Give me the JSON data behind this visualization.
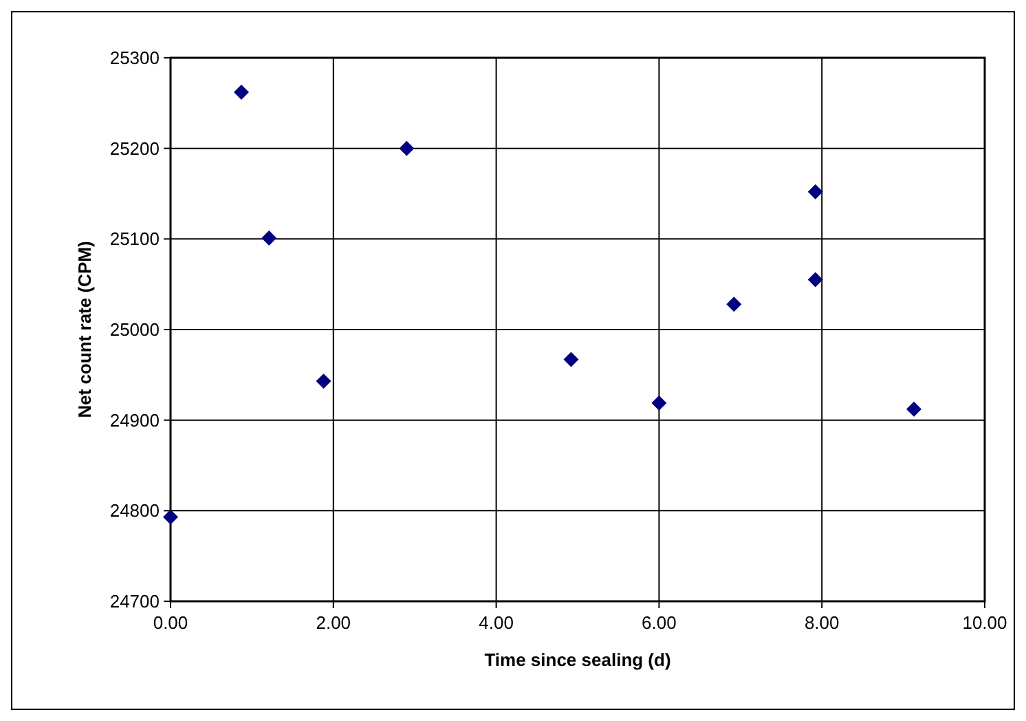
{
  "chart_data": {
    "type": "scatter",
    "xlabel": "Time since sealing (d)",
    "ylabel": "Net count rate (CPM)",
    "x": [
      0,
      0.87,
      1.21,
      1.88,
      2.9,
      4.92,
      6.0,
      6.92,
      7.92,
      7.92,
      9.13
    ],
    "series": [
      {
        "color": "#000080",
        "values": [
          24793,
          25262,
          25101,
          24943,
          25200,
          24967,
          24919,
          25028,
          25152,
          25055,
          24912
        ]
      }
    ],
    "xlim": [
      0,
      10
    ],
    "xticks": [
      {
        "value": 0,
        "label": "0.00"
      },
      {
        "value": 2,
        "label": "2.00"
      },
      {
        "value": 4,
        "label": "4.00"
      },
      {
        "value": 6,
        "label": "6.00"
      },
      {
        "value": 8,
        "label": "8.00"
      },
      {
        "value": 10,
        "label": "10.00"
      }
    ],
    "ylim": [
      24700,
      25300
    ],
    "yticks": [
      24700,
      24800,
      24900,
      25000,
      25100,
      25200,
      25300
    ],
    "grid": true,
    "marker": "diamond"
  }
}
